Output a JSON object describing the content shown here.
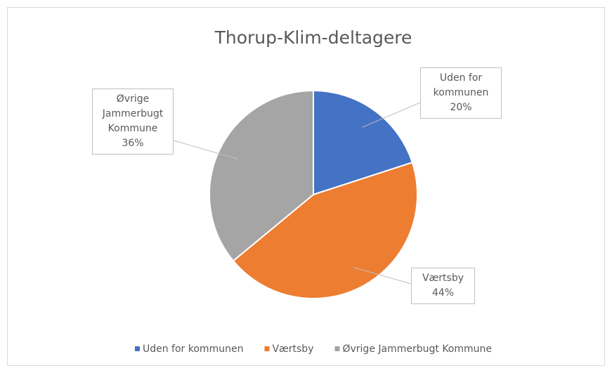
{
  "chart_data": {
    "type": "pie",
    "title": "Thorup-Klim-deltagere",
    "categories": [
      "Uden for kommunen",
      "Værtsby",
      "Øvrige Jammerbugt Kommune"
    ],
    "values": [
      20,
      44,
      36
    ],
    "value_labels": [
      "20%",
      "44%",
      "36%"
    ],
    "colors": [
      "#4472c4",
      "#ed7d31",
      "#a5a5a5"
    ],
    "legend": "bottom"
  }
}
